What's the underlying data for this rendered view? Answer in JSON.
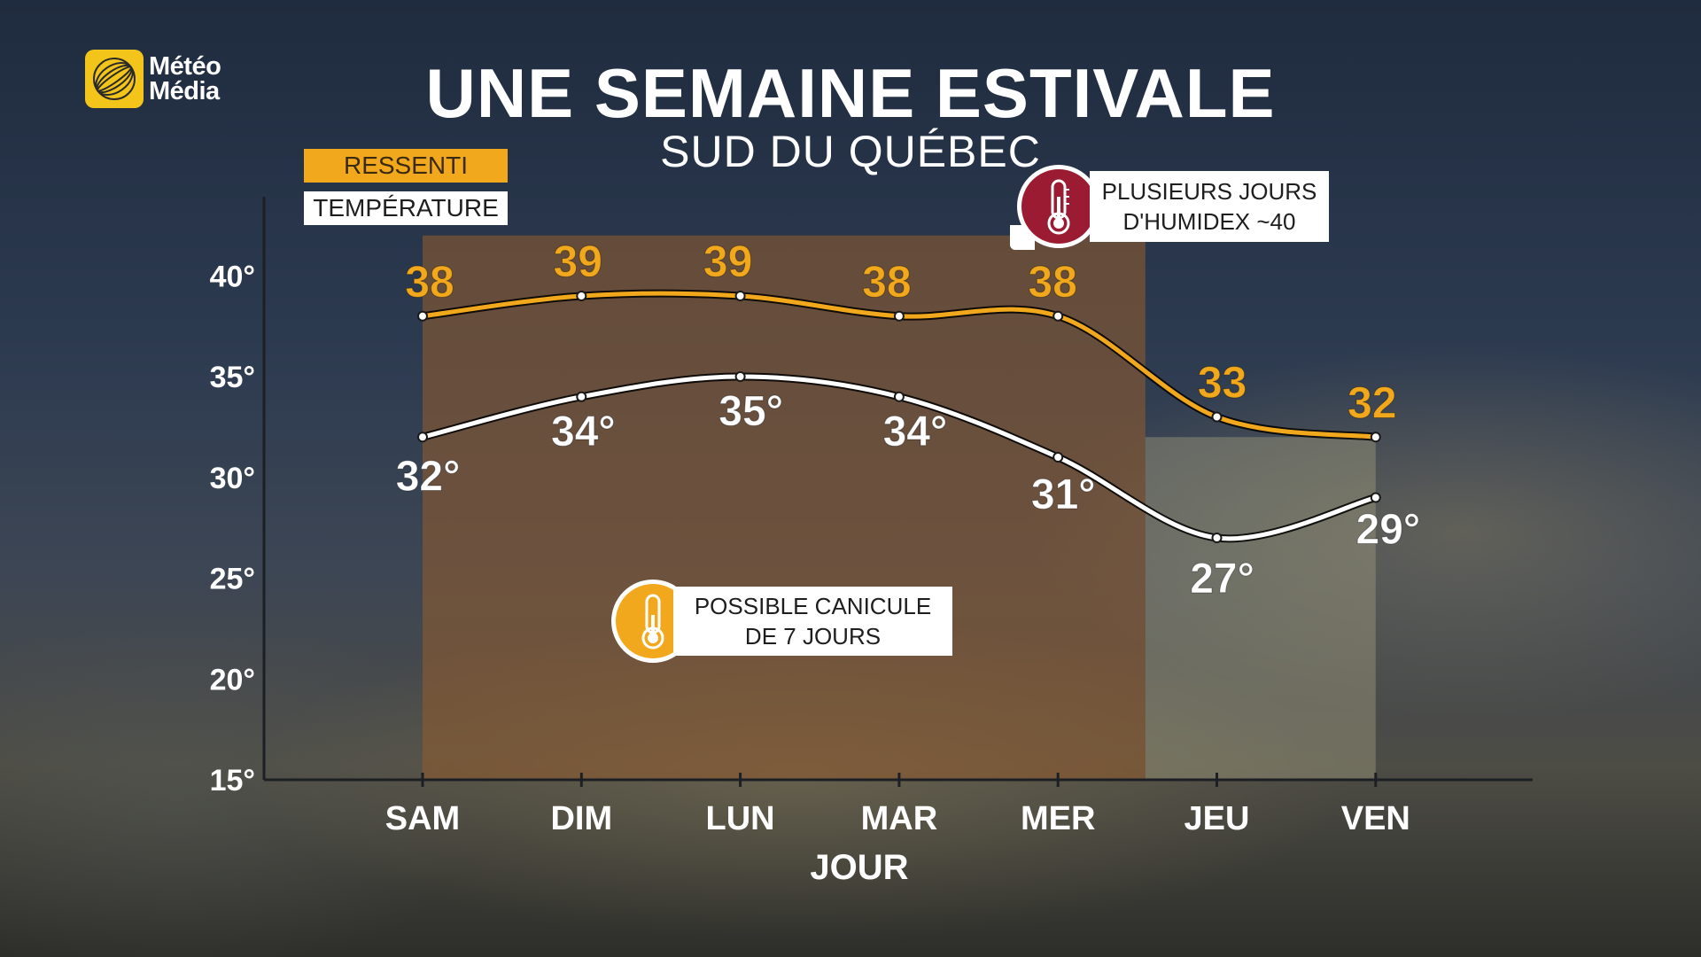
{
  "logo": {
    "line1": "Météo",
    "line2": "Média",
    "icon": "globe-icon"
  },
  "title": "UNE SEMAINE ESTIVALE",
  "subtitle": "SUD DU QUÉBEC",
  "legend": {
    "ressenti": "RESSENTI",
    "temperature": "TEMPÉRATURE"
  },
  "callouts": {
    "humidex": {
      "line1": "PLUSIEURS JOURS",
      "line2": "D'HUMIDEX ~40",
      "icon": "thermometer-icon"
    },
    "canicule": {
      "line1": "POSSIBLE CANICULE",
      "line2": "DE 7 JOURS",
      "icon": "thermometer-icon"
    }
  },
  "colors": {
    "ressenti": "#f2a81c",
    "temperature": "#ffffff",
    "humidex_badge": "#9b1c32",
    "canicule_badge": "#f2a81c",
    "heat_region": "#8a5a30",
    "cooler_region": "#9e9a7c"
  },
  "chart_data": {
    "type": "line",
    "categories": [
      "SAM",
      "DIM",
      "LUN",
      "MAR",
      "MER",
      "JEU",
      "VEN"
    ],
    "xlabel": "JOUR",
    "ylabel": "",
    "ylim": [
      15,
      42
    ],
    "yticks": [
      15,
      20,
      25,
      30,
      35,
      40
    ],
    "ytick_labels": [
      "15°",
      "20°",
      "25°",
      "30°",
      "35°",
      "40°"
    ],
    "series": [
      {
        "name": "RESSENTI",
        "values": [
          38,
          39,
          39,
          38,
          38,
          33,
          32
        ],
        "labels": [
          "38",
          "39",
          "39",
          "38",
          "38",
          "33",
          "32"
        ]
      },
      {
        "name": "TEMPÉRATURE",
        "values": [
          32,
          34,
          35,
          34,
          31,
          27,
          29
        ],
        "labels": [
          "32°",
          "34°",
          "35°",
          "34°",
          "31°",
          "27°",
          "29°"
        ]
      }
    ],
    "shaded_regions": [
      {
        "from": "SAM",
        "to": "MER",
        "kind": "heat"
      },
      {
        "from": "JEU",
        "to": "VEN",
        "kind": "cooler"
      }
    ]
  }
}
